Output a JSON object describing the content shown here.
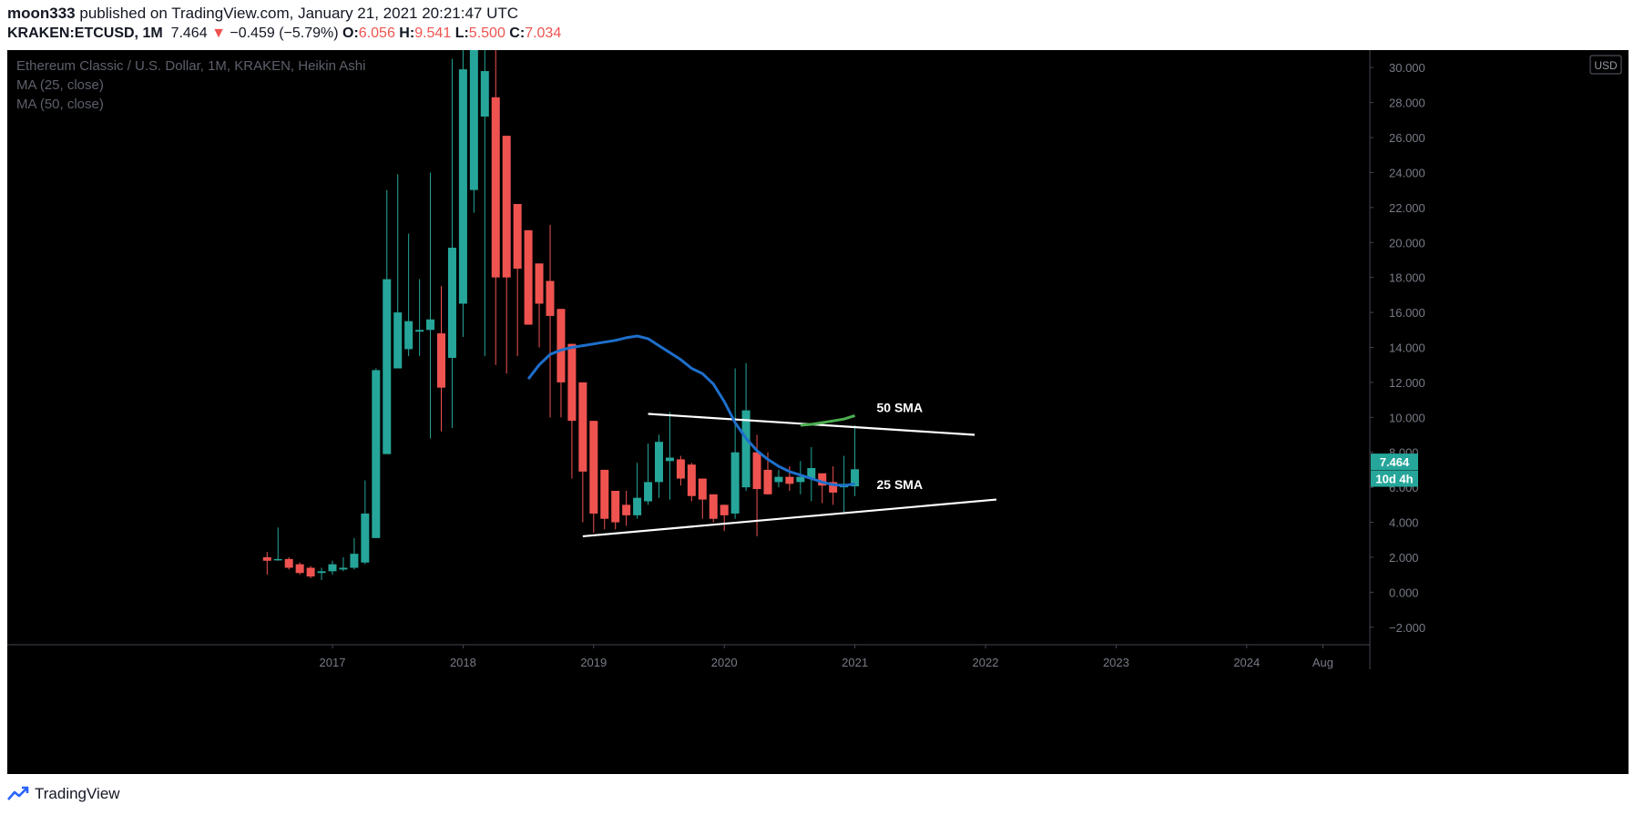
{
  "header": {
    "publisher": "moon333",
    "published_on": "published on TradingView.com, January 21, 2021 20:21:47 UTC",
    "symbol": "KRAKEN:ETCUSD, 1M",
    "last": "7.464",
    "change_arrow": "▼",
    "change": "−0.459 (−5.79%)",
    "o_label": "O:",
    "o": "6.056",
    "h_label": "H:",
    "h": "9.541",
    "l_label": "L:",
    "l": "5.500",
    "c_label": "C:",
    "c": "7.034"
  },
  "legend": {
    "title": "Ethereum Classic / U.S. Dollar, 1M, KRAKEN, Heikin Ashi",
    "ma1": "MA (25, close)",
    "ma2": "MA (50, close)"
  },
  "footer": {
    "brand": "TradingView",
    "logo_icon": "tradingview-logo-icon"
  },
  "colors": {
    "background": "#000000",
    "up": "#26a69a",
    "down": "#ef5350",
    "ma25": "#1e6fcc",
    "ma50": "#4caf50",
    "trendline": "#ffffff",
    "axis_text": "#787b86"
  },
  "chart_data": {
    "type": "candlestick",
    "style": "Heikin Ashi",
    "title": "Ethereum Classic / U.S. Dollar, 1M, KRAKEN, Heikin Ashi",
    "currency_label": "USD",
    "ylim": [
      -3,
      31
    ],
    "y_ticks": [
      -2,
      0,
      2,
      4,
      6,
      8,
      10,
      12,
      14,
      16,
      18,
      20,
      22,
      24,
      26,
      28,
      30
    ],
    "y_tick_labels": [
      "−2.000",
      "0.000",
      "2.000",
      "4.000",
      "6.000",
      "8.000",
      "10.000",
      "12.000",
      "14.000",
      "16.000",
      "18.000",
      "20.000",
      "22.000",
      "24.000",
      "26.000",
      "28.000",
      "30.000"
    ],
    "x_ticks": [
      {
        "date": "2017-01",
        "label": "2017"
      },
      {
        "date": "2018-01",
        "label": "2018"
      },
      {
        "date": "2019-01",
        "label": "2019"
      },
      {
        "date": "2020-01",
        "label": "2020"
      },
      {
        "date": "2021-01",
        "label": "2021"
      },
      {
        "date": "2022-01",
        "label": "2022"
      },
      {
        "date": "2023-01",
        "label": "2023"
      },
      {
        "date": "2024-01",
        "label": "2024"
      },
      {
        "date": "2024-08",
        "label": "Aug"
      }
    ],
    "candles": [
      {
        "date": "2016-07",
        "o": 2.0,
        "h": 2.3,
        "l": 1.0,
        "c": 1.8
      },
      {
        "date": "2016-08",
        "o": 1.9,
        "h": 3.7,
        "l": 1.8,
        "c": 1.9
      },
      {
        "date": "2016-09",
        "o": 1.9,
        "h": 2.0,
        "l": 1.3,
        "c": 1.4
      },
      {
        "date": "2016-10",
        "o": 1.6,
        "h": 1.7,
        "l": 1.0,
        "c": 1.1
      },
      {
        "date": "2016-11",
        "o": 1.4,
        "h": 1.5,
        "l": 0.8,
        "c": 0.9
      },
      {
        "date": "2016-12",
        "o": 1.1,
        "h": 1.4,
        "l": 0.7,
        "c": 1.2
      },
      {
        "date": "2017-01",
        "o": 1.2,
        "h": 1.8,
        "l": 1.0,
        "c": 1.6
      },
      {
        "date": "2017-02",
        "o": 1.3,
        "h": 2.0,
        "l": 1.2,
        "c": 1.4
      },
      {
        "date": "2017-03",
        "o": 1.4,
        "h": 3.1,
        "l": 1.3,
        "c": 2.2
      },
      {
        "date": "2017-04",
        "o": 1.7,
        "h": 6.4,
        "l": 1.6,
        "c": 4.5
      },
      {
        "date": "2017-05",
        "o": 3.1,
        "h": 12.8,
        "l": 3.1,
        "c": 12.7
      },
      {
        "date": "2017-06",
        "o": 7.9,
        "h": 23.0,
        "l": 7.9,
        "c": 17.9
      },
      {
        "date": "2017-07",
        "o": 12.8,
        "h": 23.9,
        "l": 12.8,
        "c": 16.0
      },
      {
        "date": "2017-08",
        "o": 13.9,
        "h": 20.5,
        "l": 13.5,
        "c": 15.5
      },
      {
        "date": "2017-09",
        "o": 14.9,
        "h": 17.9,
        "l": 13.5,
        "c": 15.0
      },
      {
        "date": "2017-10",
        "o": 15.0,
        "h": 24.0,
        "l": 8.8,
        "c": 15.6
      },
      {
        "date": "2017-11",
        "o": 14.8,
        "h": 17.5,
        "l": 9.2,
        "c": 11.7
      },
      {
        "date": "2017-12",
        "o": 13.4,
        "h": 30.5,
        "l": 9.4,
        "c": 19.7
      },
      {
        "date": "2018-01",
        "o": 16.5,
        "h": 31.5,
        "l": 14.6,
        "c": 29.9
      },
      {
        "date": "2018-02",
        "o": 23.0,
        "h": 31.8,
        "l": 21.7,
        "c": 31.2
      },
      {
        "date": "2018-03",
        "o": 27.2,
        "h": 31.5,
        "l": 13.5,
        "c": 29.8
      },
      {
        "date": "2018-04",
        "o": 28.3,
        "h": 31.2,
        "l": 13.0,
        "c": 18.0
      },
      {
        "date": "2018-05",
        "o": 26.1,
        "h": 26.1,
        "l": 12.5,
        "c": 18.0
      },
      {
        "date": "2018-06",
        "o": 22.2,
        "h": 22.2,
        "l": 13.5,
        "c": 18.5
      },
      {
        "date": "2018-07",
        "o": 20.7,
        "h": 20.7,
        "l": 15.5,
        "c": 15.3
      },
      {
        "date": "2018-08",
        "o": 18.8,
        "h": 18.8,
        "l": 14.0,
        "c": 16.5
      },
      {
        "date": "2018-09",
        "o": 17.8,
        "h": 21.0,
        "l": 10.0,
        "c": 15.8
      },
      {
        "date": "2018-10",
        "o": 16.2,
        "h": 16.2,
        "l": 10.0,
        "c": 12.0
      },
      {
        "date": "2018-11",
        "o": 14.2,
        "h": 14.2,
        "l": 6.5,
        "c": 9.8
      },
      {
        "date": "2018-12",
        "o": 12.0,
        "h": 12.0,
        "l": 4.0,
        "c": 6.9
      },
      {
        "date": "2019-01",
        "o": 9.8,
        "h": 9.8,
        "l": 3.4,
        "c": 4.5
      },
      {
        "date": "2019-02",
        "o": 7.0,
        "h": 7.0,
        "l": 3.6,
        "c": 4.2
      },
      {
        "date": "2019-03",
        "o": 5.8,
        "h": 5.8,
        "l": 3.6,
        "c": 4.0
      },
      {
        "date": "2019-04",
        "o": 5.0,
        "h": 5.8,
        "l": 3.8,
        "c": 4.4
      },
      {
        "date": "2019-05",
        "o": 4.4,
        "h": 7.4,
        "l": 4.2,
        "c": 5.4
      },
      {
        "date": "2019-06",
        "o": 5.2,
        "h": 8.5,
        "l": 5.0,
        "c": 6.3
      },
      {
        "date": "2019-07",
        "o": 6.3,
        "h": 9.0,
        "l": 5.4,
        "c": 8.6
      },
      {
        "date": "2019-08",
        "o": 7.5,
        "h": 10.3,
        "l": 5.3,
        "c": 7.7
      },
      {
        "date": "2019-09",
        "o": 7.6,
        "h": 7.8,
        "l": 6.1,
        "c": 6.5
      },
      {
        "date": "2019-10",
        "o": 7.3,
        "h": 7.4,
        "l": 5.2,
        "c": 5.5
      },
      {
        "date": "2019-11",
        "o": 6.5,
        "h": 6.5,
        "l": 4.2,
        "c": 5.3
      },
      {
        "date": "2019-12",
        "o": 5.6,
        "h": 5.6,
        "l": 4.0,
        "c": 4.2
      },
      {
        "date": "2020-01",
        "o": 5.0,
        "h": 5.0,
        "l": 3.5,
        "c": 4.4
      },
      {
        "date": "2020-02",
        "o": 4.5,
        "h": 12.8,
        "l": 4.2,
        "c": 8.0
      },
      {
        "date": "2020-03",
        "o": 6.0,
        "h": 13.1,
        "l": 5.8,
        "c": 10.4
      },
      {
        "date": "2020-04",
        "o": 8.0,
        "h": 9.0,
        "l": 3.2,
        "c": 5.9
      },
      {
        "date": "2020-05",
        "o": 7.0,
        "h": 8.0,
        "l": 5.6,
        "c": 5.6
      },
      {
        "date": "2020-06",
        "o": 6.3,
        "h": 7.0,
        "l": 6.0,
        "c": 6.6
      },
      {
        "date": "2020-07",
        "o": 6.6,
        "h": 7.2,
        "l": 5.8,
        "c": 6.2
      },
      {
        "date": "2020-08",
        "o": 6.3,
        "h": 7.5,
        "l": 5.6,
        "c": 6.6
      },
      {
        "date": "2020-09",
        "o": 6.5,
        "h": 8.3,
        "l": 5.2,
        "c": 7.1
      },
      {
        "date": "2020-10",
        "o": 6.8,
        "h": 6.8,
        "l": 5.1,
        "c": 6.1
      },
      {
        "date": "2020-11",
        "o": 6.3,
        "h": 7.2,
        "l": 5.0,
        "c": 5.7
      },
      {
        "date": "2020-12",
        "o": 6.0,
        "h": 7.8,
        "l": 4.6,
        "c": 6.2
      },
      {
        "date": "2021-01",
        "o": 6.056,
        "h": 9.541,
        "l": 5.5,
        "c": 7.034
      }
    ],
    "ma25": [
      {
        "date": "2018-07",
        "v": 12.2
      },
      {
        "date": "2018-08",
        "v": 13.0
      },
      {
        "date": "2018-09",
        "v": 13.6
      },
      {
        "date": "2018-10",
        "v": 13.85
      },
      {
        "date": "2018-11",
        "v": 14.0
      },
      {
        "date": "2018-12",
        "v": 14.1
      },
      {
        "date": "2019-01",
        "v": 14.2
      },
      {
        "date": "2019-02",
        "v": 14.3
      },
      {
        "date": "2019-03",
        "v": 14.4
      },
      {
        "date": "2019-04",
        "v": 14.55
      },
      {
        "date": "2019-05",
        "v": 14.65
      },
      {
        "date": "2019-06",
        "v": 14.5
      },
      {
        "date": "2019-07",
        "v": 14.1
      },
      {
        "date": "2019-08",
        "v": 13.7
      },
      {
        "date": "2019-09",
        "v": 13.3
      },
      {
        "date": "2019-10",
        "v": 12.8
      },
      {
        "date": "2019-11",
        "v": 12.5
      },
      {
        "date": "2019-12",
        "v": 11.9
      },
      {
        "date": "2020-01",
        "v": 10.9
      },
      {
        "date": "2020-02",
        "v": 9.7
      },
      {
        "date": "2020-03",
        "v": 8.8
      },
      {
        "date": "2020-04",
        "v": 8.1
      },
      {
        "date": "2020-05",
        "v": 7.6
      },
      {
        "date": "2020-06",
        "v": 7.2
      },
      {
        "date": "2020-07",
        "v": 6.9
      },
      {
        "date": "2020-08",
        "v": 6.7
      },
      {
        "date": "2020-09",
        "v": 6.5
      },
      {
        "date": "2020-10",
        "v": 6.3
      },
      {
        "date": "2020-11",
        "v": 6.15
      },
      {
        "date": "2020-12",
        "v": 6.1
      },
      {
        "date": "2021-01",
        "v": 6.2
      }
    ],
    "ma50": [
      {
        "date": "2020-08",
        "v": 9.55
      },
      {
        "date": "2020-09",
        "v": 9.6
      },
      {
        "date": "2020-10",
        "v": 9.7
      },
      {
        "date": "2020-11",
        "v": 9.8
      },
      {
        "date": "2020-12",
        "v": 9.9
      },
      {
        "date": "2021-01",
        "v": 10.1
      }
    ],
    "trendlines": [
      {
        "from": {
          "date": "2019-06",
          "v": 10.2
        },
        "to": {
          "date": "2021-12",
          "v": 9.0
        }
      },
      {
        "from": {
          "date": "2018-12",
          "v": 3.2
        },
        "to": {
          "date": "2022-02",
          "v": 5.3
        }
      }
    ],
    "annotations": [
      {
        "text": "50 SMA",
        "date": "2021-03",
        "v": 10.3
      },
      {
        "text": "25 SMA",
        "date": "2021-03",
        "v": 5.9
      }
    ],
    "price_labels": [
      {
        "text": "7.464",
        "v": 7.46
      },
      {
        "text": "10d 4h",
        "v": 6.5
      }
    ]
  }
}
